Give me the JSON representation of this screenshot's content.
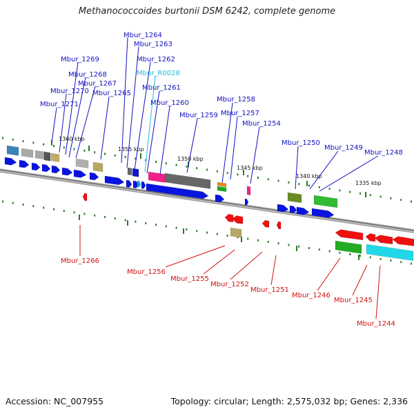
{
  "title": "Methanococcoides burtonii DSM 6242, complete genome",
  "footer": {
    "accession": "Accession: NC_007955",
    "topology": "Topology: circular; Length: 2,575,032 bp; Genes: 2,336"
  },
  "colors": {
    "forward_label": "#1010c0",
    "reverse_label": "#d01010",
    "rna_label": "#22bbdd",
    "forward_arrow": "#0a14e0",
    "reverse_arrow": "#ee1010",
    "backbone": "#888888",
    "tick": "#2a7a2a"
  },
  "scale_labels": [
    "1360 kbp",
    "1355 kbp",
    "1350 kbp",
    "1345 kbp",
    "1340 kbp",
    "1335 kbp"
  ],
  "forward_genes": [
    "Mbur_1264",
    "Mbur_1263",
    "Mbur_1269",
    "Mbur_1262",
    "Mbur_R0028",
    "Mbur_1268",
    "Mbur_1267",
    "Mbur_1261",
    "Mbur_1270",
    "Mbur_1265",
    "Mbur_1258",
    "Mbur_1260",
    "Mbur_1271",
    "Mbur_1257",
    "Mbur_1259",
    "Mbur_1254",
    "Mbur_1250",
    "Mbur_1249",
    "Mbur_1248"
  ],
  "reverse_genes": [
    "Mbur_1266",
    "Mbur_1256",
    "Mbur_1255",
    "Mbur_1252",
    "Mbur_1251",
    "Mbur_1246",
    "Mbur_1245",
    "Mbur_1244"
  ]
}
